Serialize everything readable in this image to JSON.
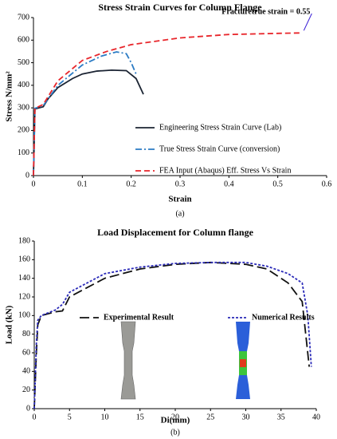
{
  "chart_data": [
    {
      "type": "line",
      "title": "Stress Strain Curves for Column Flange",
      "xlabel": "Strain",
      "ylabel": "Stress N/mm²",
      "caption": "(a)",
      "annotation": "Fracturetrue strain = 0.55",
      "annotation_color": "#3b1fd6",
      "xlim": [
        0,
        0.6
      ],
      "xticks": [
        0,
        0.1,
        0.2,
        0.3,
        0.4,
        0.5,
        0.6
      ],
      "ylim": [
        0,
        700
      ],
      "yticks": [
        0,
        100,
        200,
        300,
        400,
        500,
        600,
        700
      ],
      "legend": "right",
      "series": [
        {
          "name": "Engineering Stress Strain Curve (Lab)",
          "color": "#1b2433",
          "dash": "solid",
          "x": [
            0,
            0.003,
            0.02,
            0.03,
            0.05,
            0.08,
            0.1,
            0.13,
            0.16,
            0.19,
            0.21,
            0.225
          ],
          "values": [
            0,
            295,
            305,
            340,
            390,
            430,
            450,
            463,
            467,
            465,
            430,
            360
          ]
        },
        {
          "name": "True Stress Strain Curve (conversion)",
          "color": "#2b7bc4",
          "dash": "dashdot",
          "x": [
            0,
            0.003,
            0.02,
            0.05,
            0.1,
            0.14,
            0.17,
            0.19,
            0.2,
            0.21
          ],
          "values": [
            0,
            298,
            310,
            400,
            490,
            530,
            548,
            540,
            500,
            450
          ]
        },
        {
          "name": "FEA Input (Abaqus) Eff. Stress Vs Strain",
          "color": "#e8262b",
          "dash": "dashed",
          "x": [
            0,
            0.003,
            0.02,
            0.05,
            0.1,
            0.15,
            0.2,
            0.3,
            0.4,
            0.5,
            0.55
          ],
          "values": [
            0,
            298,
            315,
            420,
            510,
            550,
            580,
            610,
            625,
            630,
            632
          ]
        }
      ]
    },
    {
      "type": "line",
      "title": "Load Displacement for Column flange",
      "xlabel": "Di(mm)",
      "ylabel": "Load (kN)",
      "caption": "(b)",
      "xlim": [
        0,
        40
      ],
      "xticks": [
        0,
        5,
        10,
        15,
        20,
        25,
        30,
        35,
        40
      ],
      "ylim": [
        0,
        180
      ],
      "yticks": [
        0,
        20,
        40,
        60,
        80,
        100,
        120,
        140,
        160,
        180
      ],
      "legend": "center",
      "series": [
        {
          "name": "Experimental Result",
          "color": "#111111",
          "dash": "longdash",
          "x": [
            0,
            0.3,
            0.5,
            1,
            2,
            3,
            4,
            5,
            10,
            15,
            20,
            25,
            30,
            33,
            36,
            38,
            38.5,
            39
          ],
          "values": [
            0,
            60,
            90,
            100,
            102,
            104,
            105,
            120,
            140,
            150,
            155,
            157,
            155,
            150,
            135,
            115,
            80,
            45
          ]
        },
        {
          "name": "Numerical Results",
          "color": "#2a2ab8",
          "dash": "dotted",
          "x": [
            0,
            0.3,
            0.5,
            1,
            2,
            3,
            4,
            5,
            10,
            15,
            20,
            25,
            30,
            33,
            36,
            38,
            38.8,
            39.3
          ],
          "values": [
            0,
            70,
            95,
            100,
            103,
            106,
            112,
            125,
            145,
            152,
            156,
            157,
            157,
            153,
            145,
            135,
            100,
            45
          ]
        }
      ]
    }
  ]
}
